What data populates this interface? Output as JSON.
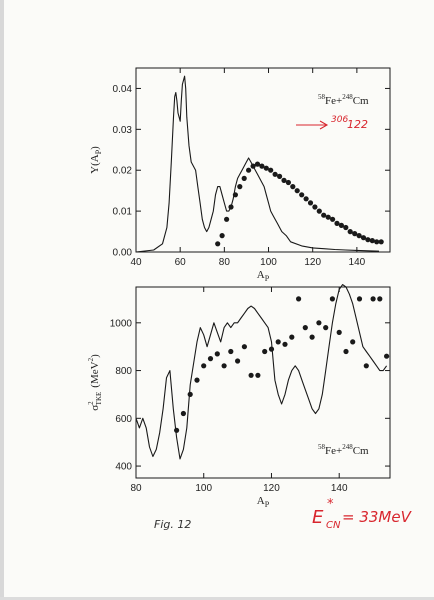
{
  "chart_data": [
    {
      "type": "line",
      "ylabel": "Y(A",
      "ylabel_sub": "P",
      "ylabel_tail": ")",
      "xlabel": "A",
      "xlabel_sub": "P",
      "reaction_pre": "58",
      "reaction_mid": "Fe+",
      "reaction_pre2": "248",
      "reaction_tail": "Cm",
      "xlim": [
        40,
        155
      ],
      "ylim": [
        0,
        0.045
      ],
      "xticks": [
        "40",
        "60",
        "80",
        "100",
        "120",
        "140"
      ],
      "xtick_values": [
        40,
        60,
        80,
        100,
        120,
        140
      ],
      "yticks": [
        "0.00",
        "0.01",
        "0.02",
        "0.03",
        "0.04"
      ],
      "ytick_values": [
        0,
        0.01,
        0.02,
        0.03,
        0.04
      ],
      "series": [
        {
          "kind": "line",
          "x": [
            40,
            48,
            52,
            54,
            55,
            56,
            57,
            57.5,
            58,
            58.5,
            59,
            60,
            60.5,
            61,
            62,
            62.5,
            63,
            64,
            65,
            66,
            67,
            68,
            69,
            70,
            71,
            72,
            73,
            74,
            75,
            76,
            77,
            78,
            79,
            80,
            81,
            82,
            83,
            84,
            85,
            86,
            87,
            88,
            89,
            90,
            91,
            92,
            93,
            94,
            95,
            96,
            97,
            98,
            99,
            100,
            101,
            102,
            103,
            104,
            105,
            106,
            107,
            108,
            110,
            115,
            120,
            125,
            130,
            135,
            140,
            145,
            150
          ],
          "y": [
            0,
            0.0005,
            0.002,
            0.006,
            0.012,
            0.022,
            0.033,
            0.038,
            0.039,
            0.037,
            0.034,
            0.032,
            0.037,
            0.041,
            0.043,
            0.04,
            0.033,
            0.026,
            0.022,
            0.021,
            0.02,
            0.016,
            0.012,
            0.008,
            0.006,
            0.005,
            0.006,
            0.008,
            0.01,
            0.014,
            0.016,
            0.016,
            0.014,
            0.012,
            0.01,
            0.01,
            0.011,
            0.013,
            0.016,
            0.018,
            0.019,
            0.02,
            0.021,
            0.022,
            0.023,
            0.022,
            0.021,
            0.02,
            0.019,
            0.018,
            0.017,
            0.016,
            0.014,
            0.012,
            0.01,
            0.009,
            0.008,
            0.007,
            0.006,
            0.005,
            0.0045,
            0.004,
            0.0025,
            0.0015,
            0.001,
            0.0008,
            0.0006,
            0.0005,
            0.0004,
            0.0003,
            0.0002
          ]
        },
        {
          "kind": "scatter",
          "x": [
            77,
            79,
            81,
            83,
            85,
            87,
            89,
            91,
            93,
            95,
            97,
            99,
            101,
            103,
            105,
            107,
            109,
            111,
            113,
            115,
            117,
            119,
            121,
            123,
            125,
            127,
            129,
            131,
            133,
            135,
            137,
            139,
            141,
            143,
            145,
            147,
            149,
            151
          ],
          "y": [
            0.002,
            0.004,
            0.008,
            0.011,
            0.014,
            0.016,
            0.018,
            0.02,
            0.021,
            0.0215,
            0.021,
            0.0205,
            0.02,
            0.019,
            0.0185,
            0.0175,
            0.017,
            0.016,
            0.015,
            0.014,
            0.013,
            0.012,
            0.011,
            0.01,
            0.009,
            0.0085,
            0.008,
            0.007,
            0.0065,
            0.006,
            0.005,
            0.0045,
            0.004,
            0.0035,
            0.003,
            0.0028,
            0.0025,
            0.0025
          ]
        }
      ]
    },
    {
      "type": "line",
      "ylabel": "σ",
      "ylabel_sup": "2",
      "ylabel_sub": "TKE",
      "ylabel_unit": "(MeV",
      "ylabel_unit_sup": "2",
      "ylabel_unit_tail": ")",
      "xlabel": "A",
      "xlabel_sub": "P",
      "reaction_pre": "58",
      "reaction_mid": "Fe+",
      "reaction_pre2": "248",
      "reaction_tail": "Cm",
      "xlim": [
        80,
        155
      ],
      "ylim": [
        350,
        1150
      ],
      "xticks": [
        "80",
        "100",
        "120",
        "140"
      ],
      "xtick_values": [
        80,
        100,
        120,
        140
      ],
      "yticks": [
        "400",
        "600",
        "800",
        "1000"
      ],
      "ytick_values": [
        400,
        600,
        800,
        1000
      ],
      "series": [
        {
          "kind": "line",
          "x": [
            80,
            81,
            82,
            83,
            84,
            85,
            86,
            87,
            88,
            89,
            90,
            91,
            92,
            93,
            94,
            95,
            96,
            97,
            98,
            99,
            100,
            101,
            102,
            103,
            104,
            105,
            106,
            107,
            108,
            109,
            110,
            111,
            112,
            113,
            114,
            115,
            116,
            117,
            118,
            119,
            120,
            121,
            122,
            123,
            124,
            125,
            126,
            127,
            128,
            129,
            130,
            131,
            132,
            133,
            134,
            135,
            136,
            137,
            138,
            139,
            140,
            141,
            142,
            143,
            144,
            145,
            146,
            147,
            148,
            149,
            150,
            151,
            152,
            153,
            154
          ],
          "y": [
            600,
            560,
            600,
            560,
            480,
            440,
            470,
            540,
            640,
            770,
            800,
            640,
            520,
            430,
            470,
            560,
            740,
            830,
            920,
            980,
            950,
            900,
            950,
            1000,
            960,
            920,
            980,
            1000,
            980,
            1000,
            1000,
            1020,
            1040,
            1060,
            1070,
            1060,
            1040,
            1020,
            1000,
            980,
            920,
            760,
            700,
            660,
            700,
            760,
            800,
            820,
            800,
            760,
            720,
            680,
            640,
            620,
            640,
            700,
            800,
            900,
            1000,
            1080,
            1140,
            1160,
            1150,
            1120,
            1080,
            1020,
            960,
            900,
            880,
            860,
            840,
            820,
            800,
            800,
            820
          ]
        },
        {
          "kind": "scatter",
          "x": [
            92,
            94,
            96,
            98,
            100,
            102,
            104,
            106,
            108,
            110,
            112,
            114,
            116,
            118,
            120,
            122,
            124,
            126,
            128,
            130,
            132,
            134,
            136,
            138,
            140,
            142,
            144,
            146,
            148,
            150,
            152,
            154
          ],
          "y": [
            550,
            620,
            700,
            760,
            820,
            850,
            870,
            820,
            880,
            840,
            900,
            780,
            780,
            880,
            890,
            920,
            910,
            940,
            1100,
            980,
            940,
            1000,
            980,
            1100,
            960,
            880,
            920,
            1100,
            820,
            1100,
            1100,
            860
          ]
        }
      ]
    }
  ],
  "annotations": {
    "handwritten_mass": "306",
    "handwritten_charge": "122",
    "fig_label": "Fig. 12",
    "energy_E": "E",
    "energy_sub": "CN",
    "energy_star": "*",
    "energy_value": "= 33MeV"
  },
  "colors": {
    "ink": "#1a1a1a",
    "annotation_red": "#d8262e",
    "paper": "#fbfbf8"
  }
}
